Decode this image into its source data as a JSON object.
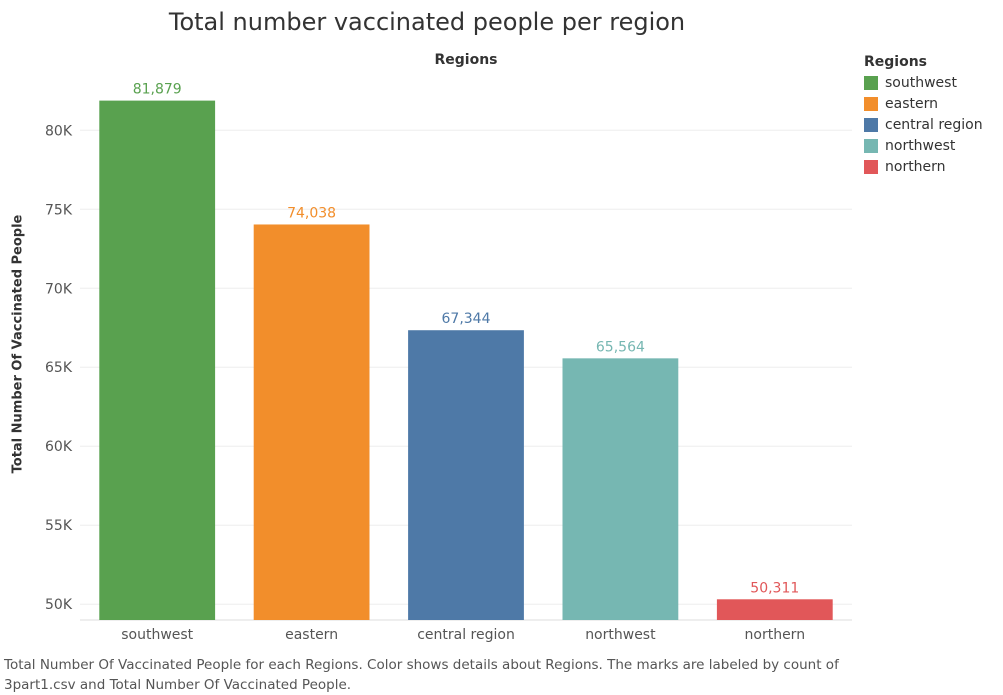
{
  "chart_data": {
    "type": "bar",
    "title": "Total number vaccinated people per region",
    "column_header": "Regions",
    "ylabel": "Total Number Of Vaccinated People",
    "categories": [
      "southwest",
      "eastern",
      "central region",
      "northwest",
      "northern"
    ],
    "values": [
      81879,
      74038,
      67344,
      65564,
      50311
    ],
    "data_labels": [
      "81,879",
      "74,038",
      "67,344",
      "65,564",
      "50,311"
    ],
    "colors": [
      "#59a14f",
      "#f28e2b",
      "#4e79a7",
      "#76b7b2",
      "#e15759"
    ],
    "ylim": [
      49000,
      83500
    ],
    "yticks": [
      50000,
      55000,
      60000,
      65000,
      70000,
      75000,
      80000
    ],
    "ytick_labels": [
      "50K",
      "55K",
      "60K",
      "65K",
      "70K",
      "75K",
      "80K"
    ],
    "grid": true,
    "legend": {
      "title": "Regions",
      "placement": "right",
      "entries": [
        "southwest",
        "eastern",
        "central region",
        "northwest",
        "northern"
      ]
    }
  },
  "caption": "Total Number Of Vaccinated People for each Regions.  Color shows details about Regions.  The marks are labeled by count of 3part1.csv and Total Number Of Vaccinated People."
}
